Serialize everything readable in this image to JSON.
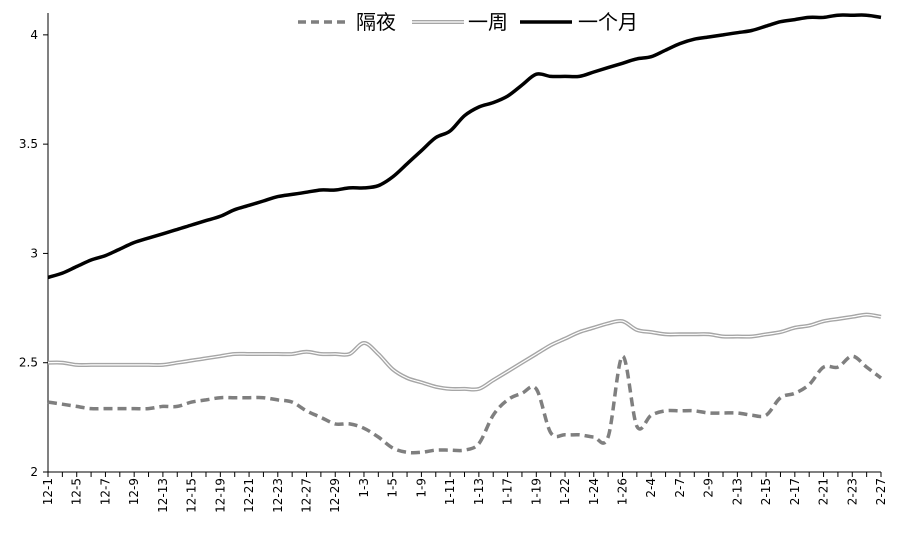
{
  "chart_data": {
    "type": "line",
    "title": "",
    "xlabel": "",
    "ylabel": "",
    "ylim": [
      2,
      4.1
    ],
    "yticks": [
      "2",
      "2.5",
      "3",
      "3.5",
      "4"
    ],
    "grid": false,
    "legend_position": "top-center",
    "x_tick_labels": [
      "12-1",
      "12-5",
      "12-7",
      "12-9",
      "12-13",
      "12-15",
      "12-19",
      "12-21",
      "12-23",
      "12-27",
      "12-29",
      "1-3",
      "1-5",
      "1-9",
      "1-11",
      "1-13",
      "1-17",
      "1-19",
      "1-22",
      "1-24",
      "1-26",
      "2-4",
      "2-7",
      "2-9",
      "2-13",
      "2-15",
      "2-17",
      "2-21",
      "2-23",
      "2-27"
    ],
    "x_tick_positions": [
      0,
      2,
      4,
      6,
      8,
      10,
      12,
      14,
      16,
      18,
      20,
      22,
      24,
      26,
      28,
      30,
      32,
      34,
      36,
      38,
      40,
      42,
      44,
      46,
      48,
      50,
      52,
      54,
      56,
      58
    ],
    "x_points": [
      0,
      1,
      2,
      3,
      4,
      5,
      6,
      7,
      8,
      9,
      10,
      11,
      12,
      13,
      14,
      15,
      16,
      17,
      18,
      19,
      20,
      21,
      22,
      23,
      24,
      25,
      26,
      27,
      28,
      29,
      30,
      31,
      32,
      33,
      34,
      35,
      36,
      37,
      38,
      39,
      40,
      41,
      42,
      43,
      44,
      45,
      46,
      47,
      48,
      49,
      50,
      51,
      52,
      53,
      54,
      55,
      56,
      57,
      58
    ],
    "series": [
      {
        "name": "隔夜",
        "color": "#7f7f7f",
        "style": "dashed",
        "values": [
          2.32,
          2.31,
          2.3,
          2.29,
          2.29,
          2.29,
          2.29,
          2.29,
          2.3,
          2.3,
          2.32,
          2.33,
          2.34,
          2.34,
          2.34,
          2.34,
          2.33,
          2.32,
          2.28,
          2.25,
          2.22,
          2.22,
          2.2,
          2.16,
          2.11,
          2.09,
          2.09,
          2.1,
          2.1,
          2.1,
          2.13,
          2.26,
          2.33,
          2.36,
          2.38,
          2.18,
          2.17,
          2.17,
          2.16,
          2.16,
          2.53,
          2.21,
          2.26,
          2.28,
          2.28,
          2.28,
          2.27,
          2.27,
          2.27,
          2.26,
          2.26,
          2.34,
          2.36,
          2.4,
          2.48,
          2.48,
          2.53,
          2.48,
          2.43
        ]
      },
      {
        "name": "一周",
        "color": "#a6a6a6",
        "style": "double",
        "values": [
          2.5,
          2.5,
          2.49,
          2.49,
          2.49,
          2.49,
          2.49,
          2.49,
          2.49,
          2.5,
          2.51,
          2.52,
          2.53,
          2.54,
          2.54,
          2.54,
          2.54,
          2.54,
          2.55,
          2.54,
          2.54,
          2.54,
          2.59,
          2.54,
          2.47,
          2.43,
          2.41,
          2.39,
          2.38,
          2.38,
          2.38,
          2.42,
          2.46,
          2.5,
          2.54,
          2.58,
          2.61,
          2.64,
          2.66,
          2.68,
          2.69,
          2.65,
          2.64,
          2.63,
          2.63,
          2.63,
          2.63,
          2.62,
          2.62,
          2.62,
          2.63,
          2.64,
          2.66,
          2.67,
          2.69,
          2.7,
          2.71,
          2.72,
          2.71
        ]
      },
      {
        "name": "一个月",
        "color": "#000000",
        "style": "solid",
        "values": [
          2.89,
          2.91,
          2.94,
          2.97,
          2.99,
          3.02,
          3.05,
          3.07,
          3.09,
          3.11,
          3.13,
          3.15,
          3.17,
          3.2,
          3.22,
          3.24,
          3.26,
          3.27,
          3.28,
          3.29,
          3.29,
          3.3,
          3.3,
          3.31,
          3.35,
          3.41,
          3.47,
          3.53,
          3.56,
          3.63,
          3.67,
          3.69,
          3.72,
          3.77,
          3.82,
          3.81,
          3.81,
          3.81,
          3.83,
          3.85,
          3.87,
          3.89,
          3.9,
          3.93,
          3.96,
          3.98,
          3.99,
          4.0,
          4.01,
          4.02,
          4.04,
          4.06,
          4.07,
          4.08,
          4.08,
          4.09,
          4.09,
          4.09,
          4.08
        ]
      }
    ]
  }
}
